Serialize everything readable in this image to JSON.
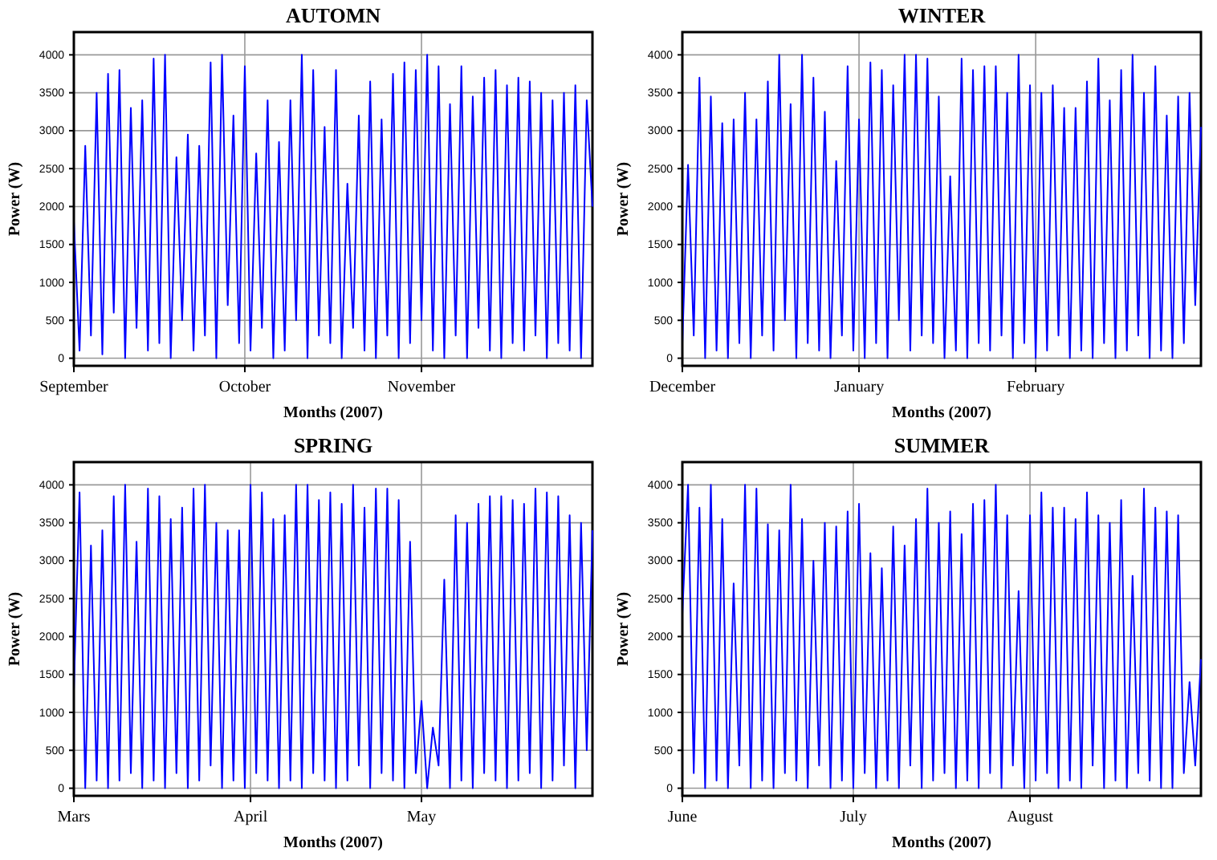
{
  "chart_data": [
    {
      "type": "line",
      "title": "AUTOMN",
      "xlabel": "Months (2007)",
      "ylabel": "Power (W)",
      "grid": true,
      "ylim": [
        -100,
        4300
      ],
      "yticks": [
        0,
        500,
        1000,
        1500,
        2000,
        2500,
        3000,
        3500,
        4000
      ],
      "categories": [
        "September",
        null,
        null,
        null,
        null,
        null,
        null,
        null,
        null,
        null,
        null,
        null,
        null,
        null,
        null,
        null,
        null,
        null,
        null,
        null,
        null,
        null,
        null,
        null,
        null,
        null,
        null,
        null,
        null,
        null,
        "October",
        null,
        null,
        null,
        null,
        null,
        null,
        null,
        null,
        null,
        null,
        null,
        null,
        null,
        null,
        null,
        null,
        null,
        null,
        null,
        null,
        null,
        null,
        null,
        null,
        null,
        null,
        null,
        null,
        null,
        null,
        "November",
        null,
        null,
        null,
        null,
        null,
        null,
        null,
        null,
        null,
        null,
        null,
        null,
        null,
        null,
        null,
        null,
        null,
        null,
        null,
        null,
        null,
        null,
        null,
        null,
        null,
        null,
        null,
        null,
        null,
        null
      ],
      "series": [
        {
          "color": "#0000ff",
          "values": [
            1800,
            100,
            2800,
            300,
            3500,
            50,
            3750,
            600,
            3800,
            0,
            3300,
            400,
            3400,
            100,
            3950,
            200,
            4000,
            0,
            2650,
            500,
            2950,
            100,
            2800,
            300,
            3900,
            0,
            4000,
            700,
            3200,
            200,
            3850,
            100,
            2700,
            400,
            3400,
            0,
            2850,
            100,
            3400,
            500,
            4000,
            0,
            3800,
            300,
            3050,
            200,
            3800,
            0,
            2300,
            400,
            3200,
            100,
            3650,
            0,
            3150,
            300,
            3750,
            0,
            3900,
            200,
            3800,
            500,
            4000,
            100,
            3850,
            0,
            3350,
            300,
            3850,
            0,
            3450,
            400,
            3700,
            100,
            3800,
            0,
            3600,
            200,
            3700,
            100,
            3650,
            300,
            3500,
            0,
            3400,
            200,
            3500,
            100,
            3600,
            0,
            3400,
            2000
          ]
        }
      ]
    },
    {
      "type": "line",
      "title": "WINTER",
      "xlabel": "Months (2007)",
      "ylabel": "Power (W)",
      "grid": true,
      "ylim": [
        -100,
        4300
      ],
      "yticks": [
        0,
        500,
        1000,
        1500,
        2000,
        2500,
        3000,
        3500,
        4000
      ],
      "categories": [
        "December",
        null,
        null,
        null,
        null,
        null,
        null,
        null,
        null,
        null,
        null,
        null,
        null,
        null,
        null,
        null,
        null,
        null,
        null,
        null,
        null,
        null,
        null,
        null,
        null,
        null,
        null,
        null,
        null,
        null,
        null,
        "January",
        null,
        null,
        null,
        null,
        null,
        null,
        null,
        null,
        null,
        null,
        null,
        null,
        null,
        null,
        null,
        null,
        null,
        null,
        null,
        null,
        null,
        null,
        null,
        null,
        null,
        null,
        null,
        null,
        null,
        null,
        "February",
        null,
        null,
        null,
        null,
        null,
        null,
        null,
        null,
        null,
        null,
        null,
        null,
        null,
        null,
        null,
        null,
        null,
        null,
        null,
        null,
        null,
        null,
        null,
        null,
        null,
        null,
        null,
        null,
        null
      ],
      "series": [
        {
          "color": "#0000ff",
          "values": [
            200,
            2550,
            300,
            3700,
            0,
            3450,
            100,
            3100,
            0,
            3150,
            200,
            3500,
            0,
            3150,
            300,
            3650,
            100,
            4000,
            500,
            3350,
            0,
            4000,
            200,
            3700,
            100,
            3250,
            0,
            2600,
            300,
            3850,
            100,
            3150,
            0,
            3900,
            200,
            3800,
            0,
            3600,
            500,
            4000,
            100,
            4000,
            300,
            3950,
            200,
            3450,
            0,
            2400,
            100,
            3950,
            0,
            3800,
            200,
            3850,
            100,
            3850,
            300,
            3500,
            0,
            4000,
            200,
            3600,
            0,
            3500,
            100,
            3600,
            300,
            3300,
            0,
            3300,
            100,
            3650,
            0,
            3950,
            200,
            3400,
            0,
            3800,
            100,
            4000,
            300,
            3500,
            0,
            3850,
            100,
            3200,
            0,
            3450,
            200,
            3500,
            700,
            3050
          ]
        }
      ]
    },
    {
      "type": "line",
      "title": "SPRING",
      "xlabel": "Months (2007)",
      "ylabel": "Power (W)",
      "grid": true,
      "ylim": [
        -100,
        4300
      ],
      "yticks": [
        0,
        500,
        1000,
        1500,
        2000,
        2500,
        3000,
        3500,
        4000
      ],
      "categories": [
        "Mars",
        null,
        null,
        null,
        null,
        null,
        null,
        null,
        null,
        null,
        null,
        null,
        null,
        null,
        null,
        null,
        null,
        null,
        null,
        null,
        null,
        null,
        null,
        null,
        null,
        null,
        null,
        null,
        null,
        null,
        null,
        "April",
        null,
        null,
        null,
        null,
        null,
        null,
        null,
        null,
        null,
        null,
        null,
        null,
        null,
        null,
        null,
        null,
        null,
        null,
        null,
        null,
        null,
        null,
        null,
        null,
        null,
        null,
        null,
        null,
        null,
        "May",
        null,
        null,
        null,
        null,
        null,
        null,
        null,
        null,
        null,
        null,
        null,
        null,
        null,
        null,
        null,
        null,
        null,
        null,
        null,
        null,
        null,
        null,
        null,
        null,
        null,
        null,
        null,
        null,
        null,
        null
      ],
      "series": [
        {
          "color": "#0000ff",
          "values": [
            1300,
            3900,
            0,
            3200,
            100,
            3400,
            0,
            3850,
            100,
            4000,
            200,
            3250,
            0,
            3950,
            100,
            3850,
            0,
            3550,
            200,
            3700,
            0,
            3950,
            100,
            4000,
            300,
            3500,
            0,
            3400,
            100,
            3400,
            0,
            4000,
            200,
            3900,
            100,
            3550,
            0,
            3600,
            100,
            4000,
            0,
            4000,
            200,
            3800,
            100,
            3900,
            0,
            3750,
            100,
            4000,
            300,
            3700,
            0,
            3950,
            200,
            3950,
            100,
            3800,
            0,
            3250,
            200,
            1150,
            0,
            800,
            300,
            2750,
            0,
            3600,
            100,
            3500,
            0,
            3750,
            200,
            3850,
            100,
            3850,
            0,
            3800,
            100,
            3750,
            200,
            3950,
            0,
            3900,
            100,
            3850,
            300,
            3600,
            0,
            3500,
            500,
            3400
          ]
        }
      ]
    },
    {
      "type": "line",
      "title": "SUMMER",
      "xlabel": "Months (2007)",
      "ylabel": "Power (W)",
      "grid": true,
      "ylim": [
        -100,
        4300
      ],
      "yticks": [
        0,
        500,
        1000,
        1500,
        2000,
        2500,
        3000,
        3500,
        4000
      ],
      "categories": [
        "June",
        null,
        null,
        null,
        null,
        null,
        null,
        null,
        null,
        null,
        null,
        null,
        null,
        null,
        null,
        null,
        null,
        null,
        null,
        null,
        null,
        null,
        null,
        null,
        null,
        null,
        null,
        null,
        null,
        null,
        "July",
        null,
        null,
        null,
        null,
        null,
        null,
        null,
        null,
        null,
        null,
        null,
        null,
        null,
        null,
        null,
        null,
        null,
        null,
        null,
        null,
        null,
        null,
        null,
        null,
        null,
        null,
        null,
        null,
        null,
        null,
        "August",
        null,
        null,
        null,
        null,
        null,
        null,
        null,
        null,
        null,
        null,
        null,
        null,
        null,
        null,
        null,
        null,
        null,
        null,
        null,
        null,
        null,
        null,
        null,
        null,
        null,
        null,
        null,
        null,
        null,
        null
      ],
      "series": [
        {
          "color": "#0000ff",
          "values": [
            2300,
            4000,
            200,
            3700,
            0,
            4000,
            100,
            3550,
            0,
            2700,
            300,
            4000,
            0,
            3950,
            100,
            3480,
            0,
            3400,
            200,
            4000,
            100,
            3550,
            0,
            3000,
            300,
            3500,
            0,
            3450,
            100,
            3650,
            0,
            3750,
            200,
            3100,
            0,
            2900,
            100,
            3450,
            0,
            3200,
            300,
            3550,
            0,
            3950,
            100,
            3500,
            200,
            3650,
            0,
            3350,
            100,
            3750,
            0,
            3800,
            200,
            4000,
            0,
            3600,
            300,
            2600,
            0,
            3600,
            100,
            3900,
            200,
            3700,
            0,
            3700,
            100,
            3550,
            0,
            3900,
            300,
            3600,
            0,
            3500,
            100,
            3800,
            0,
            2800,
            200,
            3950,
            100,
            3700,
            0,
            3650,
            0,
            3600,
            200,
            1400,
            300,
            1700
          ]
        }
      ]
    }
  ]
}
